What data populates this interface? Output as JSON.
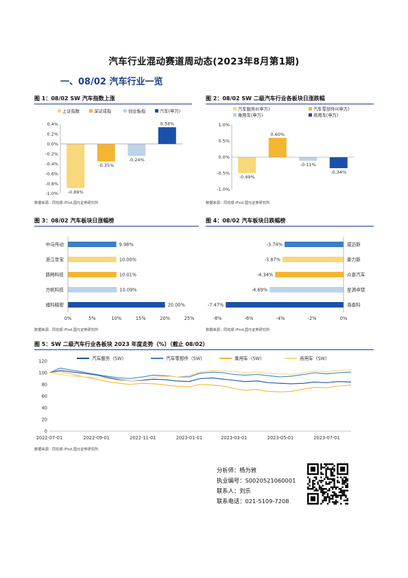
{
  "title": "汽车行业混动赛道周动态(2023年8月第1期)",
  "section": "一、08/02 汽车行业一览",
  "source_text": "数据来源：同花顺 iFind,国元证券研究所",
  "figures": {
    "fig1": {
      "title": "图 1：08/02 SW 汽车指数上涨"
    },
    "fig2": {
      "title": "图 2：08/02 SW 二级汽车行业各板块日涨跌幅"
    },
    "fig3": {
      "title": "图 3：08/02 汽车板块日涨幅榜"
    },
    "fig4": {
      "title": "图 4：08/02 汽车板块日跌幅榜"
    },
    "fig5": {
      "title": "图 5：SW 二级汽车行业各板块 2023 年度走势（%）（截止 08/02）"
    }
  },
  "chart_data": [
    {
      "type": "bar",
      "id": "fig1",
      "categories": [
        "上证指数",
        "深证成指",
        "创业板指",
        "汽车(申万)"
      ],
      "values": [
        -0.89,
        -0.35,
        -0.24,
        0.34
      ],
      "value_labels": [
        "-0.89%",
        "-0.35%",
        "-0.24%",
        "0.34%"
      ],
      "colors": [
        "#f8d87a",
        "#f4b631",
        "#bcd3ea",
        "#1a50a8"
      ],
      "ylim": [
        -1.0,
        0.4
      ],
      "yticks": [
        "0.4%",
        "0.2%",
        "0.0%",
        "-0.2%",
        "-0.4%",
        "-0.6%",
        "-0.8%",
        "-1.0%"
      ],
      "legend_position": "top"
    },
    {
      "type": "bar",
      "id": "fig2",
      "categories": [
        "汽车服务II(申万)",
        "汽车零部件II(申万)",
        "乘用车(申万)",
        "商用车(申万)"
      ],
      "values": [
        -0.49,
        0.6,
        -0.11,
        -0.34
      ],
      "value_labels": [
        "-0.49%",
        "0.60%",
        "-0.11%",
        "-0.34%"
      ],
      "colors": [
        "#f8d87a",
        "#f4b631",
        "#bcd3ea",
        "#1a50a8"
      ],
      "ylim": [
        -1.0,
        1.0
      ],
      "yticks": [
        "1.0%",
        "0.5%",
        "0.0%",
        "-0.5%",
        "-1.0%"
      ],
      "legend_position": "top"
    },
    {
      "type": "bar",
      "id": "fig3",
      "orientation": "horizontal",
      "categories": [
        "中马传动",
        "浙江世宝",
        "路畅科技",
        "方帆科技",
        "维科精密"
      ],
      "values": [
        9.98,
        10.0,
        10.01,
        10.09,
        20.0
      ],
      "value_labels": [
        "9.98%",
        "10.00%",
        "10.01%",
        "10.09%",
        "20.00%"
      ],
      "colors": [
        "#3a7fc4",
        "#f8d87a",
        "#f4b631",
        "#bcd3ea",
        "#1a50a8"
      ],
      "xlim": [
        0,
        25
      ],
      "xticks": [
        "0%",
        "5%",
        "10%",
        "15%",
        "20%",
        "25%"
      ]
    },
    {
      "type": "bar",
      "id": "fig4",
      "orientation": "horizontal",
      "categories": [
        "威迈斯",
        "豪力斯",
        "众泰汽车",
        "星源卓镁",
        "海泰科"
      ],
      "values": [
        -3.74,
        -3.87,
        -4.34,
        -4.69,
        -7.47
      ],
      "value_labels": [
        "-3.74%",
        "-3.87%",
        "-4.34%",
        "-4.69%",
        "-7.47%"
      ],
      "colors": [
        "#3a7fc4",
        "#f8d87a",
        "#f4b631",
        "#bcd3ea",
        "#1a50a8"
      ],
      "xlim": [
        -8,
        0
      ],
      "xticks": [
        "-8%",
        "-6%",
        "-4%",
        "-2%",
        "0%"
      ]
    },
    {
      "type": "line",
      "id": "fig5",
      "ylim": [
        0,
        120
      ],
      "yticks": [
        "0",
        "20",
        "40",
        "60",
        "80",
        "100",
        "120"
      ],
      "xticks": [
        "2022-07-01",
        "2022-09-01",
        "2022-11-01",
        "2023-01-01",
        "2023-03-01",
        "2023-05-01",
        "2023-07-01"
      ],
      "x_range": [
        "2022-07-01",
        "2023-08-02"
      ],
      "legend_position": "top",
      "series": [
        {
          "name": "汽车服务（SW）",
          "color": "#1a50a8",
          "x": [
            "2022-07-01",
            "2022-07-15",
            "2022-08-01",
            "2022-08-15",
            "2022-09-01",
            "2022-09-15",
            "2022-10-01",
            "2022-10-15",
            "2022-11-01",
            "2022-11-15",
            "2022-12-01",
            "2022-12-15",
            "2023-01-01",
            "2023-01-15",
            "2023-02-01",
            "2023-02-15",
            "2023-03-01",
            "2023-03-15",
            "2023-04-01",
            "2023-04-15",
            "2023-05-01",
            "2023-05-15",
            "2023-06-01",
            "2023-06-15",
            "2023-07-01",
            "2023-07-15",
            "2023-08-02"
          ],
          "values": [
            100,
            104,
            101,
            99,
            96,
            92,
            88,
            86,
            87,
            89,
            88,
            86,
            85,
            90,
            91,
            89,
            87,
            85,
            86,
            83,
            82,
            81,
            82,
            84,
            83,
            85,
            84
          ]
        },
        {
          "name": "汽车零部件（SW）",
          "color": "#3a7fc4",
          "x": [
            "2022-07-01",
            "2022-07-15",
            "2022-08-01",
            "2022-08-15",
            "2022-09-01",
            "2022-09-15",
            "2022-10-01",
            "2022-10-15",
            "2022-11-01",
            "2022-11-15",
            "2022-12-01",
            "2022-12-15",
            "2023-01-01",
            "2023-01-15",
            "2023-02-01",
            "2023-02-15",
            "2023-03-01",
            "2023-03-15",
            "2023-04-01",
            "2023-04-15",
            "2023-05-01",
            "2023-05-15",
            "2023-06-01",
            "2023-06-15",
            "2023-07-01",
            "2023-07-15",
            "2023-08-02"
          ],
          "values": [
            100,
            108,
            104,
            101,
            97,
            94,
            91,
            90,
            93,
            96,
            95,
            93,
            93,
            99,
            101,
            100,
            97,
            96,
            97,
            95,
            93,
            94,
            97,
            100,
            98,
            100,
            101
          ]
        },
        {
          "name": "乘用车（SW）",
          "color": "#f4b631",
          "x": [
            "2022-07-01",
            "2022-07-15",
            "2022-08-01",
            "2022-08-15",
            "2022-09-01",
            "2022-09-15",
            "2022-10-01",
            "2022-10-15",
            "2022-11-01",
            "2022-11-15",
            "2022-12-01",
            "2022-12-15",
            "2023-01-01",
            "2023-01-15",
            "2023-02-01",
            "2023-02-15",
            "2023-03-01",
            "2023-03-15",
            "2023-04-01",
            "2023-04-15",
            "2023-05-01",
            "2023-05-15",
            "2023-06-01",
            "2023-06-15",
            "2023-07-01",
            "2023-07-15",
            "2023-08-02"
          ],
          "values": [
            100,
            102,
            97,
            93,
            89,
            85,
            82,
            80,
            82,
            81,
            79,
            77,
            76,
            80,
            79,
            77,
            73,
            70,
            71,
            68,
            67,
            68,
            72,
            75,
            74,
            77,
            79
          ]
        },
        {
          "name": "商用车（SW）",
          "color": "#f8d87a",
          "x": [
            "2022-07-01",
            "2022-07-15",
            "2022-08-01",
            "2022-08-15",
            "2022-09-01",
            "2022-09-15",
            "2022-10-01",
            "2022-10-15",
            "2022-11-01",
            "2022-11-15",
            "2022-12-01",
            "2022-12-15",
            "2023-01-01",
            "2023-01-15",
            "2023-02-01",
            "2023-02-15",
            "2023-03-01",
            "2023-03-15",
            "2023-04-01",
            "2023-04-15",
            "2023-05-01",
            "2023-05-15",
            "2023-06-01",
            "2023-06-15",
            "2023-07-01",
            "2023-07-15",
            "2023-08-02"
          ],
          "values": [
            100,
            97,
            94,
            93,
            92,
            90,
            87,
            86,
            88,
            92,
            94,
            93,
            95,
            101,
            104,
            103,
            102,
            100,
            101,
            99,
            98,
            97,
            100,
            103,
            101,
            104,
            105
          ]
        }
      ]
    }
  ],
  "footer": {
    "analyst": "分析师：杨为敩",
    "license": "执业编号：S0020521060001",
    "contact": "联系人：刘乐",
    "phone": "联系电话：021-5109-7208"
  }
}
